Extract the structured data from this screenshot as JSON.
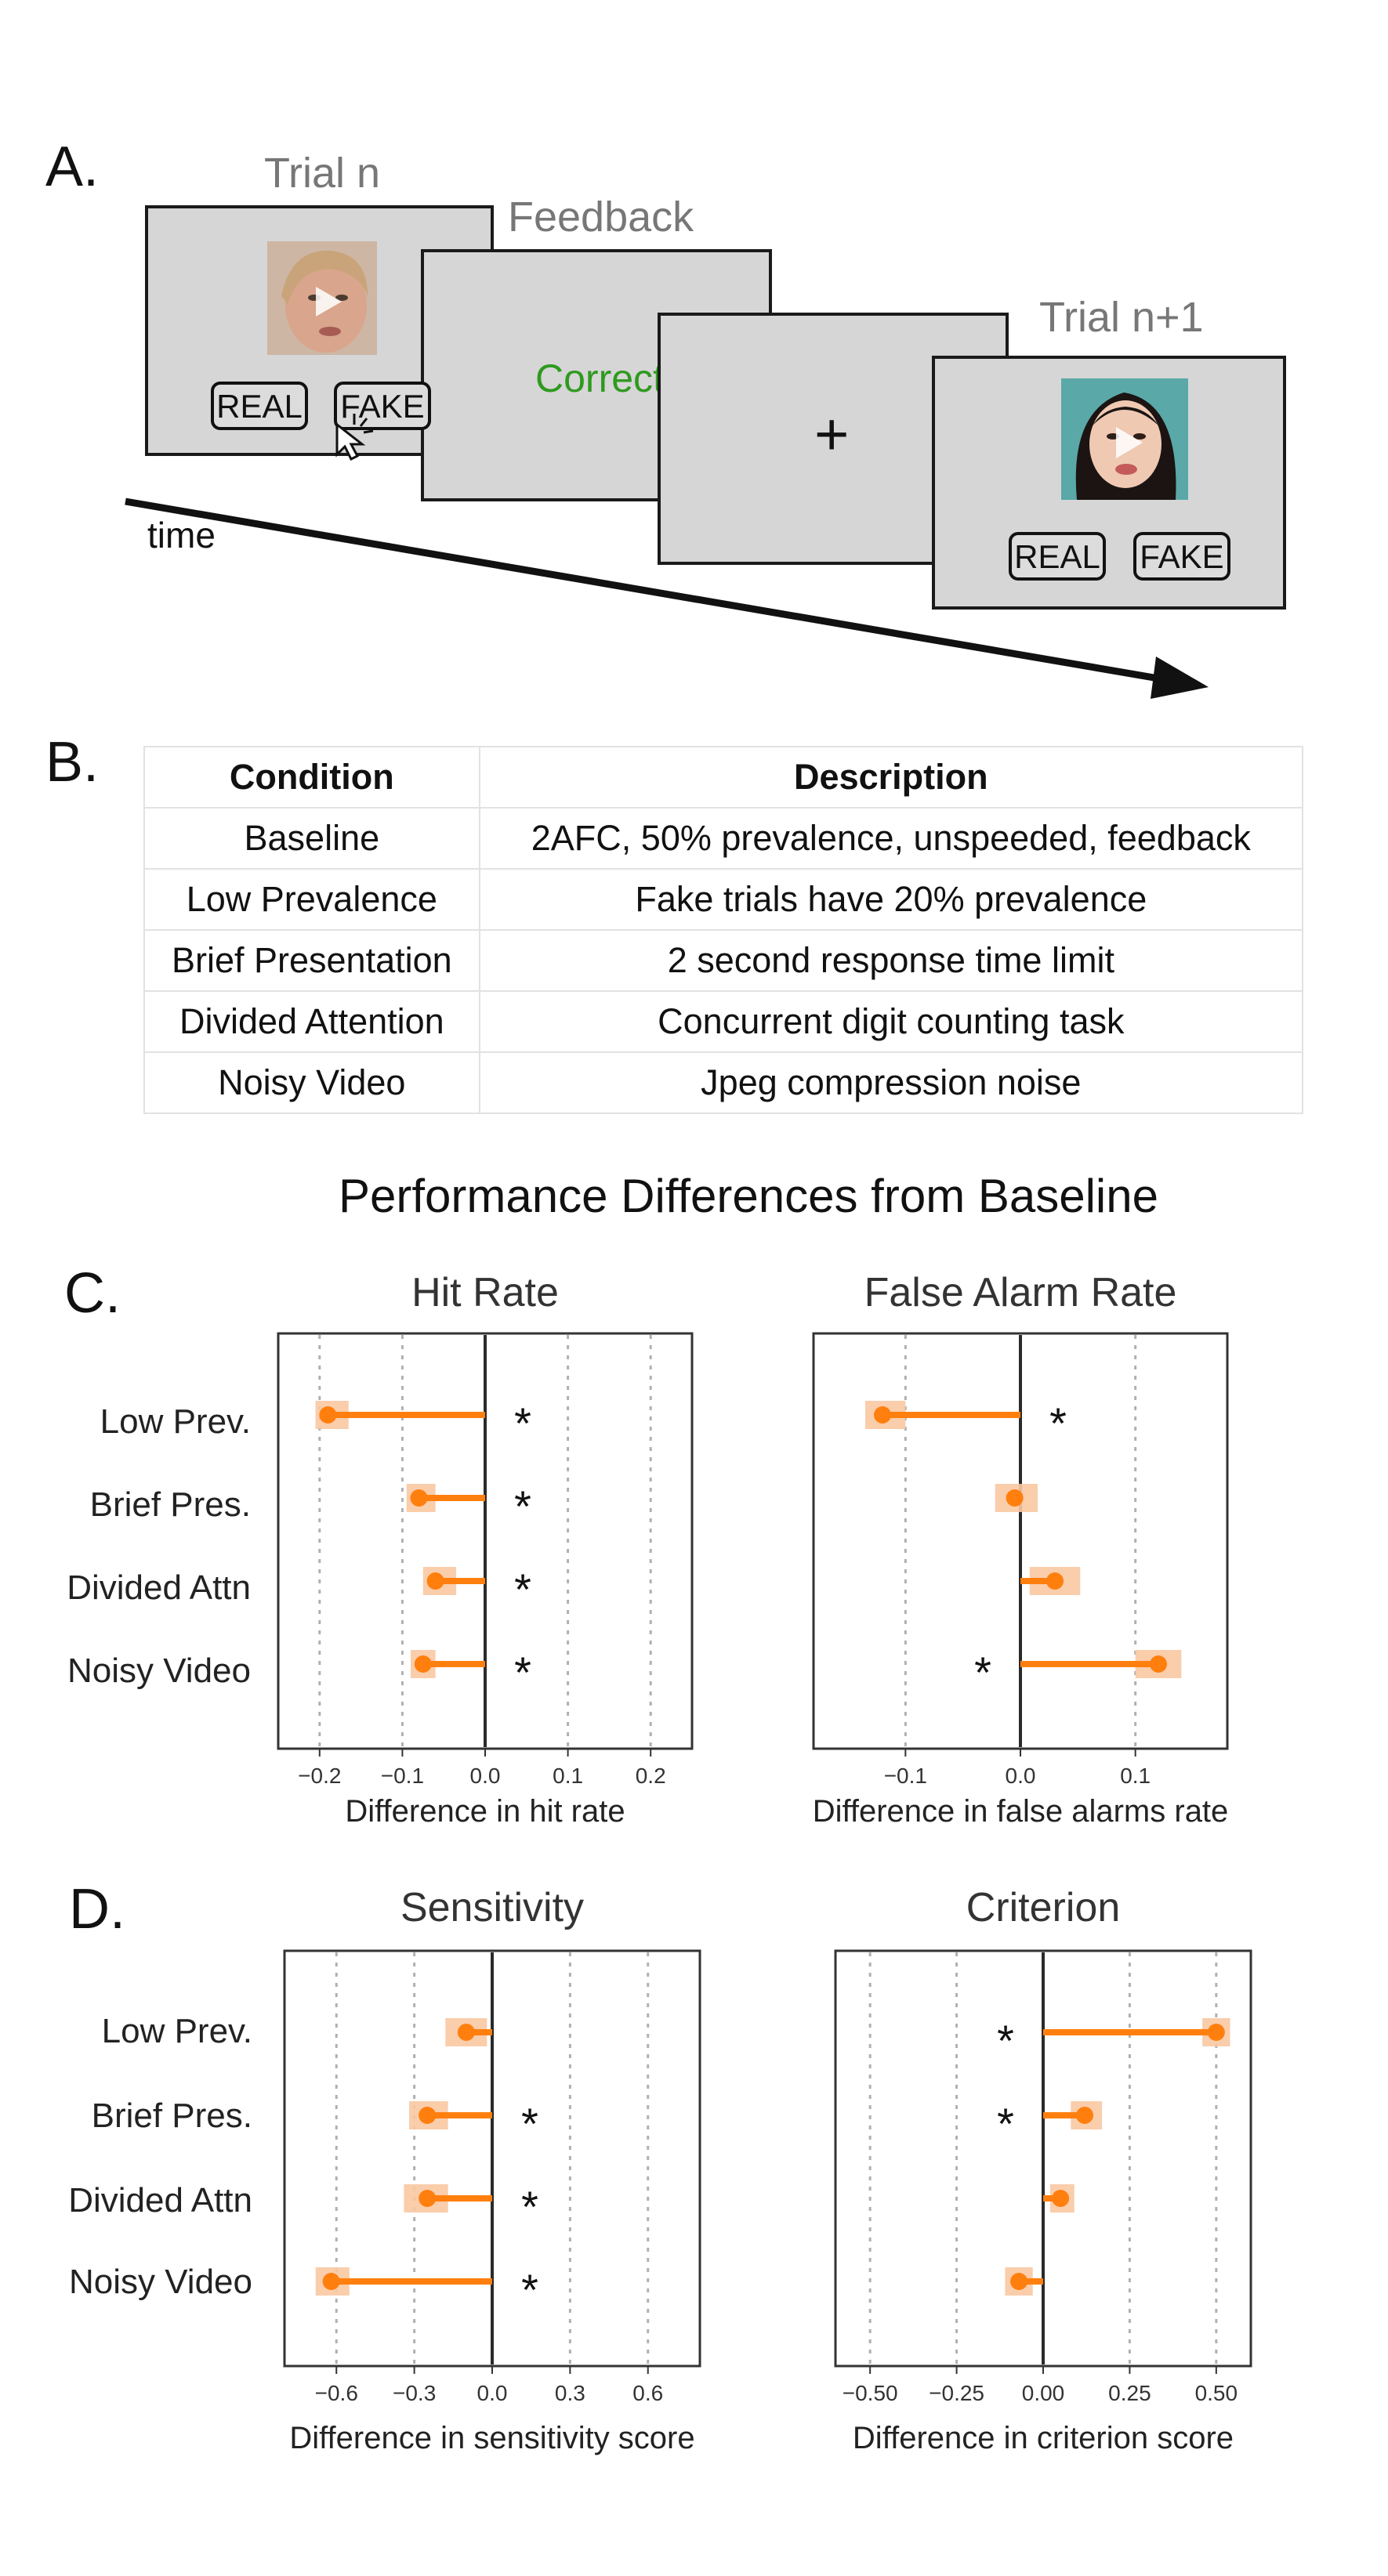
{
  "panelA": {
    "letter": "A.",
    "trial_n_title": "Trial n",
    "feedback_title": "Feedback",
    "trial_n1_title": "Trial n+1",
    "real_label": "REAL",
    "fake_label": "FAKE",
    "feedback_text": "Correct",
    "fixation": "+",
    "time_label": "time",
    "feedback_color": "#2e9a1e"
  },
  "panelB": {
    "letter": "B.",
    "headers": [
      "Condition",
      "Description"
    ],
    "rows": [
      [
        "Baseline",
        "2AFC, 50% prevalence, unspeeded, feedback"
      ],
      [
        "Low Prevalence",
        "Fake trials have 20% prevalence"
      ],
      [
        "Brief Presentation",
        "2 second response time limit"
      ],
      [
        "Divided Attention",
        "Concurrent digit counting task"
      ],
      [
        "Noisy Video",
        "Jpeg compression noise"
      ]
    ]
  },
  "figure_title": "Performance Differences from Baseline",
  "panelC": {
    "letter": "C."
  },
  "panelD": {
    "letter": "D."
  },
  "colors": {
    "accent": "#ff7f0e",
    "ci": "#f9c8a2",
    "axis": "#333333"
  },
  "chart_data": [
    {
      "id": "hit",
      "type": "dot-interval",
      "title": "Hit Rate",
      "xlabel": "Difference in hit rate",
      "ylabel": "",
      "categories": [
        "Low Prev.",
        "Brief Pres.",
        "Divided Attn",
        "Noisy Video"
      ],
      "values": [
        -0.19,
        -0.08,
        -0.06,
        -0.075
      ],
      "ci": [
        [
          -0.205,
          -0.165
        ],
        [
          -0.095,
          -0.06
        ],
        [
          -0.075,
          -0.035
        ],
        [
          -0.09,
          -0.06
        ]
      ],
      "significant": [
        true,
        true,
        true,
        true
      ],
      "star_side": [
        "right",
        "right",
        "right",
        "right"
      ],
      "xlim": [
        -0.25,
        0.25
      ],
      "ticks": [
        -0.2,
        -0.1,
        0.0,
        0.1,
        0.2
      ],
      "tick_labels": [
        "−0.2",
        "−0.1",
        "0.0",
        "0.1",
        "0.2"
      ],
      "grid": true
    },
    {
      "id": "fa",
      "type": "dot-interval",
      "title": "False Alarm Rate",
      "xlabel": "Difference in false alarms rate",
      "ylabel": "",
      "categories": [
        "Low Prev.",
        "Brief Pres.",
        "Divided Attn",
        "Noisy Video"
      ],
      "values": [
        -0.12,
        -0.005,
        0.03,
        0.12
      ],
      "ci": [
        [
          -0.135,
          -0.1
        ],
        [
          -0.022,
          0.015
        ],
        [
          0.008,
          0.052
        ],
        [
          0.1,
          0.14
        ]
      ],
      "significant": [
        true,
        false,
        false,
        true
      ],
      "star_side": [
        "right",
        "none",
        "none",
        "left"
      ],
      "xlim": [
        -0.18,
        0.18
      ],
      "ticks": [
        -0.1,
        0.0,
        0.1
      ],
      "tick_labels": [
        "−0.1",
        "0.0",
        "0.1"
      ],
      "grid": true
    },
    {
      "id": "sens",
      "type": "dot-interval",
      "title": "Sensitivity",
      "xlabel": "Difference in sensitivity score",
      "ylabel": "",
      "categories": [
        "Low Prev.",
        "Brief Pres.",
        "Divided Attn",
        "Noisy Video"
      ],
      "values": [
        -0.1,
        -0.25,
        -0.25,
        -0.62
      ],
      "ci": [
        [
          -0.18,
          -0.02
        ],
        [
          -0.32,
          -0.17
        ],
        [
          -0.34,
          -0.17
        ],
        [
          -0.68,
          -0.55
        ]
      ],
      "significant": [
        false,
        true,
        true,
        true
      ],
      "star_side": [
        "none",
        "right",
        "right",
        "right"
      ],
      "xlim": [
        -0.8,
        0.8
      ],
      "ticks": [
        -0.6,
        -0.3,
        0.0,
        0.3,
        0.6
      ],
      "tick_labels": [
        "−0.6",
        "−0.3",
        "0.0",
        "0.3",
        "0.6"
      ],
      "grid": true
    },
    {
      "id": "crit",
      "type": "dot-interval",
      "title": "Criterion",
      "xlabel": "Difference in criterion score",
      "ylabel": "",
      "categories": [
        "Low Prev.",
        "Brief Pres.",
        "Divided Attn",
        "Noisy Video"
      ],
      "values": [
        0.5,
        0.12,
        0.05,
        -0.07
      ],
      "ci": [
        [
          0.46,
          0.54
        ],
        [
          0.08,
          0.17
        ],
        [
          0.02,
          0.09
        ],
        [
          -0.11,
          -0.03
        ]
      ],
      "significant": [
        true,
        true,
        false,
        false
      ],
      "star_side": [
        "left",
        "left",
        "none",
        "none"
      ],
      "xlim": [
        -0.6,
        0.6
      ],
      "ticks": [
        -0.5,
        -0.25,
        0.0,
        0.25,
        0.5
      ],
      "tick_labels": [
        "−0.50",
        "−0.25",
        "0.00",
        "0.25",
        "0.50"
      ],
      "grid": true
    }
  ]
}
